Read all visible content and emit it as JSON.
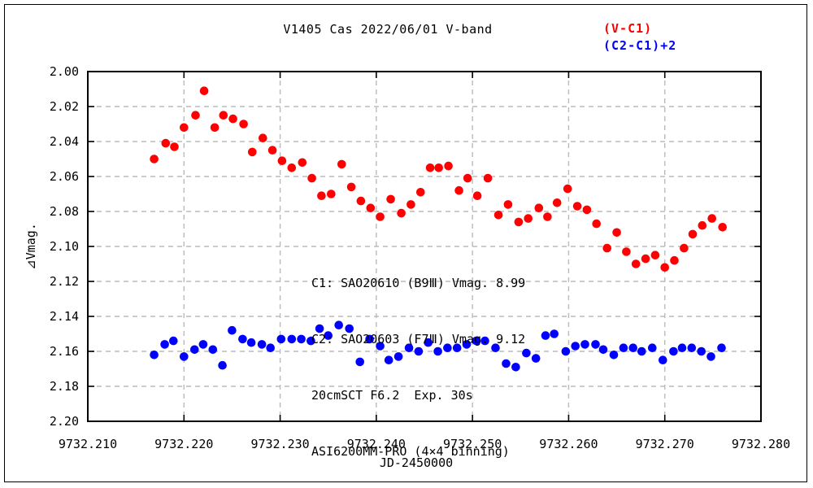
{
  "figure": {
    "title": "V1405 Cas  2022/06/01  V-band",
    "legend": [
      {
        "label": "(V-C1)",
        "color": "#ff0000"
      },
      {
        "label": "(C2-C1)+2",
        "color": "#0000ff"
      }
    ],
    "annotation_lines": [
      "C1: SAO20610 (B9Ⅲ) Vmag. 8.99",
      "C2: SAO20603 (F7Ⅲ) Vmag. 9.12",
      "20cmSCT F6.2  Exp. 30s",
      "ASI6200MM-PRO (4×4 binning)"
    ]
  },
  "chart_data": {
    "type": "scatter",
    "title": "V1405 Cas  2022/06/01  V-band",
    "xlabel": "JD-2450000",
    "ylabel": "⊿Vmag.",
    "xlim": [
      9732.21,
      9732.28
    ],
    "ylim": [
      2.0,
      2.2
    ],
    "y_axis_direction": "inverted (magnitude increases downward)",
    "grid": true,
    "grid_color": "#bbbbbb",
    "legend_position": "top-right",
    "x_ticks": [
      9732.21,
      9732.22,
      9732.23,
      9732.24,
      9732.25,
      9732.26,
      9732.27,
      9732.28
    ],
    "x_tick_labels": [
      "9732.210",
      "9732.220",
      "9732.230",
      "9732.240",
      "9732.250",
      "9732.260",
      "9732.270",
      "9732.280"
    ],
    "y_ticks": [
      2.0,
      2.02,
      2.04,
      2.06,
      2.08,
      2.1,
      2.12,
      2.14,
      2.16,
      2.18,
      2.2
    ],
    "y_tick_labels": [
      "2.00",
      "2.02",
      "2.04",
      "2.06",
      "2.08",
      "2.10",
      "2.12",
      "2.14",
      "2.16",
      "2.18",
      "2.20"
    ],
    "series": [
      {
        "name": "(V-C1)",
        "color": "#ff0000",
        "marker": "filled-circle",
        "points": [
          [
            9732.2169,
            2.05
          ],
          [
            9732.2181,
            2.041
          ],
          [
            9732.219,
            2.043
          ],
          [
            9732.22,
            2.032
          ],
          [
            9732.2212,
            2.025
          ],
          [
            9732.2221,
            2.011
          ],
          [
            9732.2232,
            2.032
          ],
          [
            9732.2241,
            2.025
          ],
          [
            9732.2251,
            2.027
          ],
          [
            9732.2262,
            2.03
          ],
          [
            9732.2271,
            2.046
          ],
          [
            9732.2282,
            2.038
          ],
          [
            9732.2292,
            2.045
          ],
          [
            9732.2302,
            2.051
          ],
          [
            9732.2312,
            2.055
          ],
          [
            9732.2323,
            2.052
          ],
          [
            9732.2333,
            2.061
          ],
          [
            9732.2343,
            2.071
          ],
          [
            9732.2353,
            2.07
          ],
          [
            9732.2364,
            2.053
          ],
          [
            9732.2374,
            2.066
          ],
          [
            9732.2384,
            2.074
          ],
          [
            9732.2394,
            2.078
          ],
          [
            9732.2404,
            2.083
          ],
          [
            9732.2415,
            2.073
          ],
          [
            9732.2426,
            2.081
          ],
          [
            9732.2436,
            2.076
          ],
          [
            9732.2446,
            2.069
          ],
          [
            9732.2456,
            2.055
          ],
          [
            9732.2465,
            2.055
          ],
          [
            9732.2475,
            2.054
          ],
          [
            9732.2486,
            2.068
          ],
          [
            9732.2495,
            2.061
          ],
          [
            9732.2505,
            2.071
          ],
          [
            9732.2516,
            2.061
          ],
          [
            9732.2527,
            2.082
          ],
          [
            9732.2537,
            2.076
          ],
          [
            9732.2548,
            2.086
          ],
          [
            9732.2558,
            2.084
          ],
          [
            9732.2569,
            2.078
          ],
          [
            9732.2578,
            2.083
          ],
          [
            9732.2588,
            2.075
          ],
          [
            9732.2599,
            2.067
          ],
          [
            9732.2609,
            2.077
          ],
          [
            9732.2619,
            2.079
          ],
          [
            9732.2629,
            2.087
          ],
          [
            9732.264,
            2.101
          ],
          [
            9732.265,
            2.092
          ],
          [
            9732.266,
            2.103
          ],
          [
            9732.267,
            2.11
          ],
          [
            9732.268,
            2.107
          ],
          [
            9732.269,
            2.105
          ],
          [
            9732.27,
            2.112
          ],
          [
            9732.271,
            2.108
          ],
          [
            9732.272,
            2.101
          ],
          [
            9732.2729,
            2.093
          ],
          [
            9732.2739,
            2.088
          ],
          [
            9732.2749,
            2.084
          ],
          [
            9732.276,
            2.089
          ]
        ]
      },
      {
        "name": "(C2-C1)+2",
        "color": "#0000ff",
        "marker": "filled-circle",
        "points": [
          [
            9732.2169,
            2.162
          ],
          [
            9732.218,
            2.156
          ],
          [
            9732.2189,
            2.154
          ],
          [
            9732.22,
            2.163
          ],
          [
            9732.2211,
            2.159
          ],
          [
            9732.222,
            2.156
          ],
          [
            9732.223,
            2.159
          ],
          [
            9732.224,
            2.168
          ],
          [
            9732.225,
            2.148
          ],
          [
            9732.2261,
            2.153
          ],
          [
            9732.227,
            2.155
          ],
          [
            9732.2281,
            2.156
          ],
          [
            9732.229,
            2.158
          ],
          [
            9732.2301,
            2.153
          ],
          [
            9732.2312,
            2.153
          ],
          [
            9732.2322,
            2.153
          ],
          [
            9732.2332,
            2.154
          ],
          [
            9732.2341,
            2.147
          ],
          [
            9732.235,
            2.151
          ],
          [
            9732.2361,
            2.145
          ],
          [
            9732.2372,
            2.147
          ],
          [
            9732.2383,
            2.166
          ],
          [
            9732.2393,
            2.153
          ],
          [
            9732.2404,
            2.157
          ],
          [
            9732.2413,
            2.165
          ],
          [
            9732.2423,
            2.163
          ],
          [
            9732.2434,
            2.158
          ],
          [
            9732.2444,
            2.16
          ],
          [
            9732.2454,
            2.155
          ],
          [
            9732.2464,
            2.16
          ],
          [
            9732.2474,
            2.158
          ],
          [
            9732.2484,
            2.158
          ],
          [
            9732.2494,
            2.156
          ],
          [
            9732.2504,
            2.154
          ],
          [
            9732.2513,
            2.154
          ],
          [
            9732.2524,
            2.158
          ],
          [
            9732.2535,
            2.167
          ],
          [
            9732.2545,
            2.169
          ],
          [
            9732.2556,
            2.161
          ],
          [
            9732.2566,
            2.164
          ],
          [
            9732.2576,
            2.151
          ],
          [
            9732.2585,
            2.15
          ],
          [
            9732.2597,
            2.16
          ],
          [
            9732.2607,
            2.157
          ],
          [
            9732.2617,
            2.156
          ],
          [
            9732.2628,
            2.156
          ],
          [
            9732.2636,
            2.159
          ],
          [
            9732.2647,
            2.162
          ],
          [
            9732.2657,
            2.158
          ],
          [
            9732.2667,
            2.158
          ],
          [
            9732.2676,
            2.16
          ],
          [
            9732.2687,
            2.158
          ],
          [
            9732.2698,
            2.165
          ],
          [
            9732.2709,
            2.16
          ],
          [
            9732.2718,
            2.158
          ],
          [
            9732.2728,
            2.158
          ],
          [
            9732.2738,
            2.16
          ],
          [
            9732.2748,
            2.163
          ],
          [
            9732.2759,
            2.158
          ]
        ]
      }
    ]
  }
}
